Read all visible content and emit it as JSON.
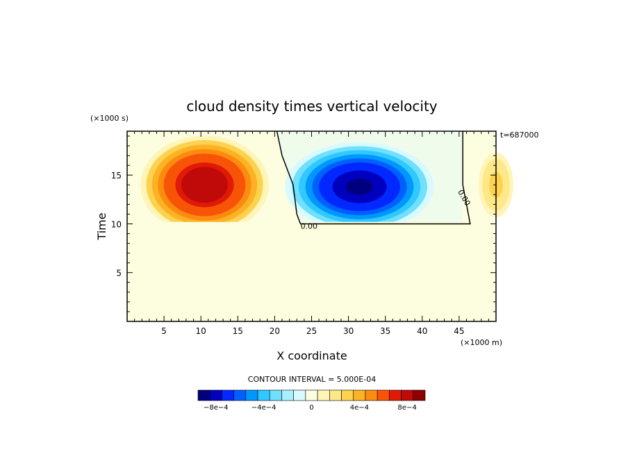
{
  "chart_data": {
    "type": "heatmap",
    "subtype": "filled-contour",
    "title": "cloud density times vertical velocity",
    "xlabel": "X coordinate",
    "ylabel": "Time",
    "x_units": "(×1000 m)",
    "y_units": "(×1000 s)",
    "annotation": "t=687000",
    "xlim": [
      0,
      50
    ],
    "ylim": [
      0,
      19.5
    ],
    "x_ticks": [
      5,
      10,
      15,
      20,
      25,
      30,
      35,
      40,
      45
    ],
    "y_ticks": [
      5,
      10,
      15
    ],
    "x_minor_step": 1,
    "y_minor_step": 1,
    "contour_interval_label": "CONTOUR INTERVAL = 5.000E-04",
    "zero_contour_label": "0.00",
    "colorbar": {
      "colors": [
        "#00007f",
        "#0000bf",
        "#0028ff",
        "#0060ff",
        "#0098ff",
        "#30c8ff",
        "#70e0ff",
        "#a8f0ff",
        "#d8faff",
        "#fdfde0",
        "#fff5b8",
        "#fee88a",
        "#fdd24e",
        "#fcb224",
        "#fb8c10",
        "#f85408",
        "#e01a06",
        "#c00a0a",
        "#8c0000"
      ],
      "tick_labels": [
        {
          "text": "−8e−4",
          "value": -0.0008
        },
        {
          "text": "−4e−4",
          "value": -0.0004
        },
        {
          "text": "0",
          "value": 0
        },
        {
          "text": "4e−4",
          "value": 0.0004
        },
        {
          "text": "8e−4",
          "value": 0.0008
        }
      ],
      "min": -0.00095,
      "max": 0.00095
    },
    "blobs": [
      {
        "name": "positive",
        "cx": 10.5,
        "cy": 14.0,
        "rx": 9.5,
        "ry": 5.5,
        "peak": 0.00085
      },
      {
        "name": "negative",
        "cx": 31.5,
        "cy": 13.8,
        "rx": 11.0,
        "ry": 5.0,
        "peak": -0.0009
      },
      {
        "name": "edge-positive",
        "cx": 50.0,
        "cy": 14.0,
        "rx": 2.8,
        "ry": 4.0,
        "peak": 0.0003
      }
    ]
  }
}
